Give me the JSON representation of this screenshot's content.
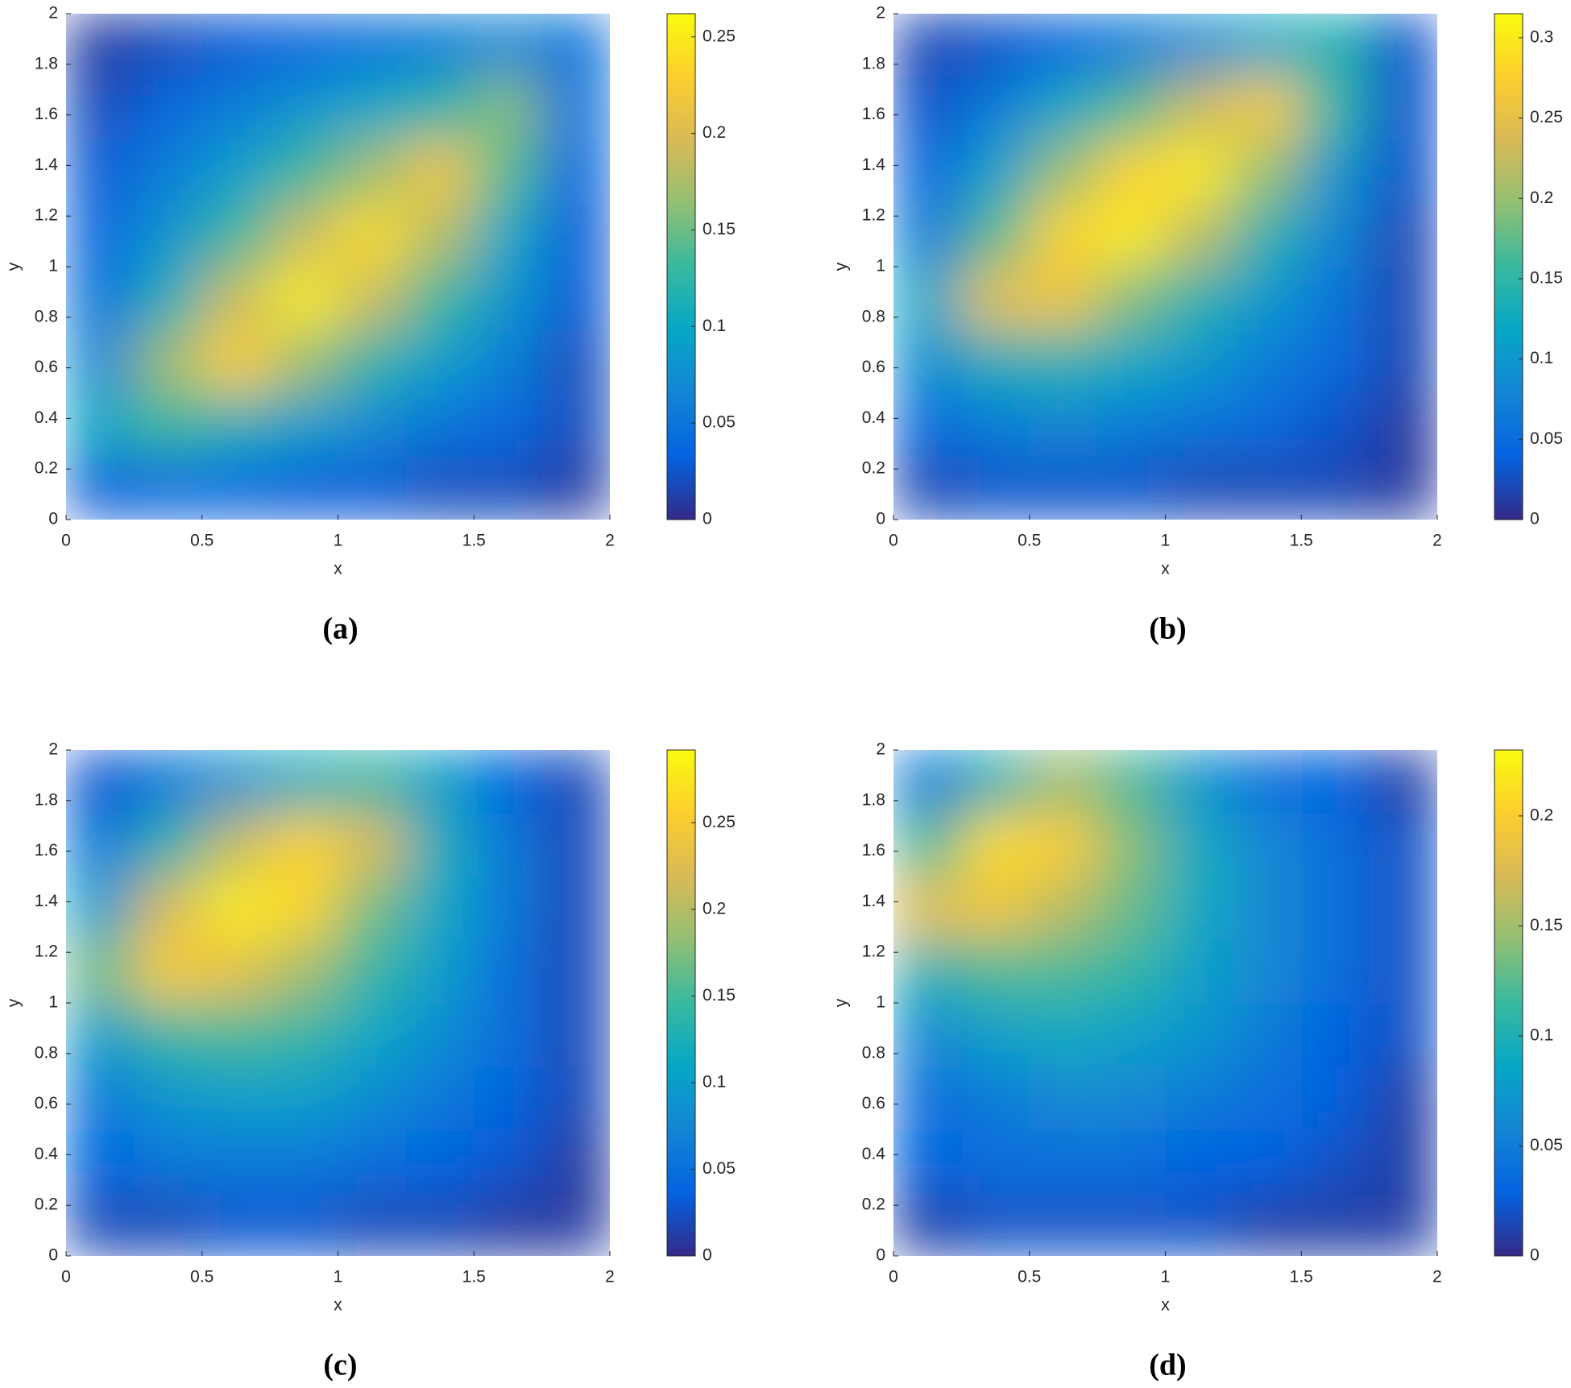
{
  "chart_data": [
    {
      "type": "heatmap",
      "label": "(a)",
      "x_label": "x",
      "y_label": "y",
      "x": [
        0.125,
        0.375,
        0.625,
        0.875,
        1.125,
        1.375,
        1.625,
        1.875
      ],
      "y": [
        0.125,
        0.375,
        0.625,
        0.875,
        1.125,
        1.375,
        1.625,
        1.875
      ],
      "z": [
        [
          0.03,
          0.04,
          0.04,
          0.03,
          0.03,
          0.02,
          0.02,
          0.01
        ],
        [
          0.1,
          0.13,
          0.11,
          0.09,
          0.07,
          0.05,
          0.04,
          0.02
        ],
        [
          0.07,
          0.17,
          0.23,
          0.17,
          0.12,
          0.09,
          0.06,
          0.02
        ],
        [
          0.05,
          0.11,
          0.19,
          0.25,
          0.19,
          0.13,
          0.08,
          0.03
        ],
        [
          0.04,
          0.08,
          0.13,
          0.19,
          0.24,
          0.18,
          0.1,
          0.03
        ],
        [
          0.03,
          0.06,
          0.09,
          0.13,
          0.17,
          0.22,
          0.14,
          0.04
        ],
        [
          0.02,
          0.04,
          0.06,
          0.08,
          0.1,
          0.12,
          0.16,
          0.05
        ],
        [
          0.01,
          0.02,
          0.03,
          0.04,
          0.05,
          0.06,
          0.07,
          0.05
        ]
      ],
      "xlim": [
        0,
        2
      ],
      "ylim": [
        0,
        2
      ],
      "xticks": [
        0,
        0.5,
        1,
        1.5,
        2
      ],
      "yticks": [
        0,
        0.2,
        0.4,
        0.6,
        0.8,
        1,
        1.2,
        1.4,
        1.6,
        1.8,
        2
      ],
      "colormap": "parula",
      "clim": [
        0,
        0.262
      ],
      "cticks": [
        0,
        0.05,
        0.1,
        0.15,
        0.2,
        0.25
      ]
    },
    {
      "type": "heatmap",
      "label": "(b)",
      "x_label": "x",
      "y_label": "y",
      "x": [
        0.125,
        0.375,
        0.625,
        0.875,
        1.125,
        1.375,
        1.625,
        1.875
      ],
      "y": [
        0.125,
        0.375,
        0.625,
        0.875,
        1.125,
        1.375,
        1.625,
        1.875
      ],
      "z": [
        [
          0.02,
          0.03,
          0.03,
          0.03,
          0.02,
          0.02,
          0.02,
          0.01
        ],
        [
          0.05,
          0.07,
          0.08,
          0.07,
          0.06,
          0.05,
          0.03,
          0.01
        ],
        [
          0.09,
          0.13,
          0.14,
          0.12,
          0.1,
          0.07,
          0.05,
          0.02
        ],
        [
          0.12,
          0.25,
          0.26,
          0.19,
          0.14,
          0.1,
          0.06,
          0.02
        ],
        [
          0.07,
          0.17,
          0.28,
          0.3,
          0.22,
          0.14,
          0.08,
          0.02
        ],
        [
          0.05,
          0.11,
          0.2,
          0.28,
          0.3,
          0.2,
          0.1,
          0.03
        ],
        [
          0.03,
          0.07,
          0.12,
          0.17,
          0.23,
          0.27,
          0.15,
          0.03
        ],
        [
          0.02,
          0.03,
          0.05,
          0.07,
          0.09,
          0.12,
          0.14,
          0.03
        ]
      ],
      "xlim": [
        0,
        2
      ],
      "ylim": [
        0,
        2
      ],
      "xticks": [
        0,
        0.5,
        1,
        1.5,
        2
      ],
      "yticks": [
        0,
        0.2,
        0.4,
        0.6,
        0.8,
        1,
        1.2,
        1.4,
        1.6,
        1.8,
        2
      ],
      "colormap": "parula",
      "clim": [
        0,
        0.315
      ],
      "cticks": [
        0,
        0.05,
        0.1,
        0.15,
        0.2,
        0.25,
        0.3
      ]
    },
    {
      "type": "heatmap",
      "label": "(c)",
      "x_label": "x",
      "y_label": "y",
      "x": [
        0.125,
        0.375,
        0.625,
        0.875,
        1.125,
        1.375,
        1.625,
        1.875
      ],
      "y": [
        0.125,
        0.375,
        0.625,
        0.875,
        1.125,
        1.375,
        1.625,
        1.875
      ],
      "z": [
        [
          0.02,
          0.02,
          0.03,
          0.03,
          0.02,
          0.02,
          0.01,
          0.01
        ],
        [
          0.04,
          0.06,
          0.06,
          0.06,
          0.05,
          0.04,
          0.03,
          0.01
        ],
        [
          0.06,
          0.09,
          0.1,
          0.1,
          0.08,
          0.06,
          0.04,
          0.02
        ],
        [
          0.1,
          0.14,
          0.15,
          0.14,
          0.11,
          0.08,
          0.05,
          0.02
        ],
        [
          0.17,
          0.25,
          0.23,
          0.19,
          0.14,
          0.1,
          0.05,
          0.02
        ],
        [
          0.1,
          0.22,
          0.28,
          0.26,
          0.17,
          0.11,
          0.06,
          0.02
        ],
        [
          0.06,
          0.13,
          0.21,
          0.26,
          0.22,
          0.12,
          0.06,
          0.02
        ],
        [
          0.03,
          0.06,
          0.09,
          0.12,
          0.14,
          0.1,
          0.04,
          0.02
        ]
      ],
      "xlim": [
        0,
        2
      ],
      "ylim": [
        0,
        2
      ],
      "xticks": [
        0,
        0.5,
        1,
        1.5,
        2
      ],
      "yticks": [
        0,
        0.2,
        0.4,
        0.6,
        0.8,
        1,
        1.2,
        1.4,
        1.6,
        1.8,
        2
      ],
      "colormap": "parula",
      "clim": [
        0,
        0.292
      ],
      "cticks": [
        0,
        0.05,
        0.1,
        0.15,
        0.2,
        0.25
      ]
    },
    {
      "type": "heatmap",
      "label": "(d)",
      "x_label": "x",
      "y_label": "y",
      "x": [
        0.125,
        0.375,
        0.625,
        0.875,
        1.125,
        1.375,
        1.625,
        1.875
      ],
      "y": [
        0.125,
        0.375,
        0.625,
        0.875,
        1.125,
        1.375,
        1.625,
        1.875
      ],
      "z": [
        [
          0.01,
          0.02,
          0.02,
          0.02,
          0.02,
          0.01,
          0.01,
          0.01
        ],
        [
          0.03,
          0.04,
          0.04,
          0.04,
          0.03,
          0.03,
          0.02,
          0.01
        ],
        [
          0.04,
          0.05,
          0.06,
          0.06,
          0.05,
          0.04,
          0.03,
          0.01
        ],
        [
          0.06,
          0.08,
          0.09,
          0.08,
          0.07,
          0.05,
          0.03,
          0.02
        ],
        [
          0.1,
          0.12,
          0.12,
          0.11,
          0.08,
          0.06,
          0.04,
          0.02
        ],
        [
          0.18,
          0.19,
          0.16,
          0.13,
          0.09,
          0.06,
          0.04,
          0.02
        ],
        [
          0.12,
          0.21,
          0.2,
          0.14,
          0.09,
          0.06,
          0.04,
          0.02
        ],
        [
          0.05,
          0.1,
          0.15,
          0.12,
          0.07,
          0.04,
          0.03,
          0.01
        ]
      ],
      "xlim": [
        0,
        2
      ],
      "ylim": [
        0,
        2
      ],
      "xticks": [
        0,
        0.5,
        1,
        1.5,
        2
      ],
      "yticks": [
        0,
        0.2,
        0.4,
        0.6,
        0.8,
        1,
        1.2,
        1.4,
        1.6,
        1.8,
        2
      ],
      "colormap": "parula",
      "clim": [
        0,
        0.23
      ],
      "cticks": [
        0,
        0.05,
        0.1,
        0.15,
        0.2
      ]
    }
  ]
}
